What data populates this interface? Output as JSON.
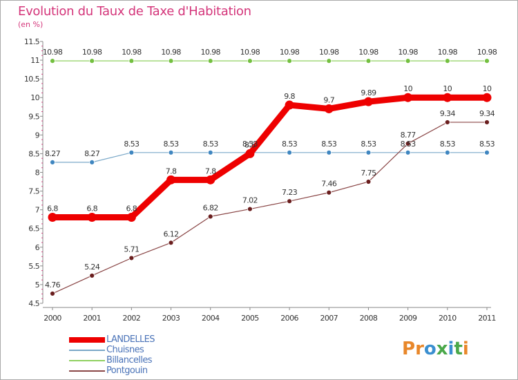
{
  "title": "Evolution du Taux de Taxe d'Habitation",
  "subtitle": "(en %)",
  "logo": {
    "text": "Proxiti",
    "colors": [
      "#e8872a",
      "#e8872a",
      "#3a8fd0",
      "#4aa84a",
      "#3a8fd0",
      "#4aa84a",
      "#e8872a"
    ]
  },
  "chart_data": {
    "type": "line",
    "title": "Evolution du Taux de Taxe d'Habitation",
    "ylabel": "(en %)",
    "xlabel": "",
    "ylim": [
      4.5,
      11.5
    ],
    "yticks": [
      4.5,
      5,
      5.5,
      6,
      6.5,
      7,
      7.5,
      8,
      8.5,
      9,
      9.5,
      10,
      10.5,
      11,
      11.5
    ],
    "ytick_labels": [
      "4.5",
      "5",
      "5.5",
      "6",
      "6.5",
      "7",
      "7.5",
      "8",
      "8.5",
      "9",
      "9.5",
      "10",
      "10.5",
      "11",
      "11.5"
    ],
    "x": [
      "2000",
      "2001",
      "2002",
      "2003",
      "2004",
      "2005",
      "2006",
      "2007",
      "2008",
      "2009",
      "2010",
      "2011"
    ],
    "grid": false,
    "legend_position": "bottom-left",
    "series": [
      {
        "name": "Billancelles",
        "color": "#8fd060",
        "marker": "#74c040",
        "width": 1.2,
        "r": 3.5,
        "values": [
          10.98,
          10.98,
          10.98,
          10.98,
          10.98,
          10.98,
          10.98,
          10.98,
          10.98,
          10.98,
          10.98,
          10.98
        ],
        "labels": [
          "10.98",
          "10.98",
          "10.98",
          "10.98",
          "10.98",
          "10.98",
          "10.98",
          "10.98",
          "10.98",
          "10.98",
          "10.98",
          "10.98"
        ]
      },
      {
        "name": "Chuisnes",
        "color": "#7aa8c8",
        "marker": "#3f86c0",
        "width": 1.2,
        "r": 3.5,
        "values": [
          8.27,
          8.27,
          8.53,
          8.53,
          8.53,
          8.53,
          8.53,
          8.53,
          8.53,
          8.53,
          8.53,
          8.53
        ],
        "labels": [
          "8.27",
          "8.27",
          "8.53",
          "8.53",
          "8.53",
          "8.53",
          "8.53",
          "8.53",
          "8.53",
          "8.53",
          "8.53",
          "8.53"
        ]
      },
      {
        "name": "Pontgouin",
        "color": "#8a4646",
        "marker": "#6a1e1e",
        "width": 1.2,
        "r": 3.5,
        "values": [
          4.76,
          5.24,
          5.71,
          6.12,
          6.82,
          7.02,
          7.23,
          7.46,
          7.75,
          8.77,
          9.34,
          9.34
        ],
        "labels": [
          "4.76",
          "5.24",
          "5.71",
          "6.12",
          "6.82",
          "7.02",
          "7.23",
          "7.46",
          "7.75",
          "8.77",
          "9.34",
          "9.34"
        ]
      },
      {
        "name": "LANDELLES",
        "color": "#ee0000",
        "marker": "#ee0000",
        "width": 9,
        "r": 6.5,
        "values": [
          6.8,
          6.8,
          6.8,
          7.8,
          7.8,
          8.5,
          9.8,
          9.7,
          9.89,
          10,
          10,
          10
        ],
        "labels": [
          "6.8",
          "6.8",
          "6.8",
          "7.8",
          "7.8",
          "8.5",
          "9.8",
          "9.7",
          "9.89",
          "10",
          "10",
          "10"
        ]
      }
    ]
  },
  "legend": [
    {
      "name": "LANDELLES",
      "color": "#ee0000",
      "thickness": 8
    },
    {
      "name": "Chuisnes",
      "color": "#7aa8c8",
      "thickness": 2
    },
    {
      "name": "Billancelles",
      "color": "#8fd060",
      "thickness": 2
    },
    {
      "name": "Pontgouin",
      "color": "#8a4646",
      "thickness": 2
    }
  ]
}
